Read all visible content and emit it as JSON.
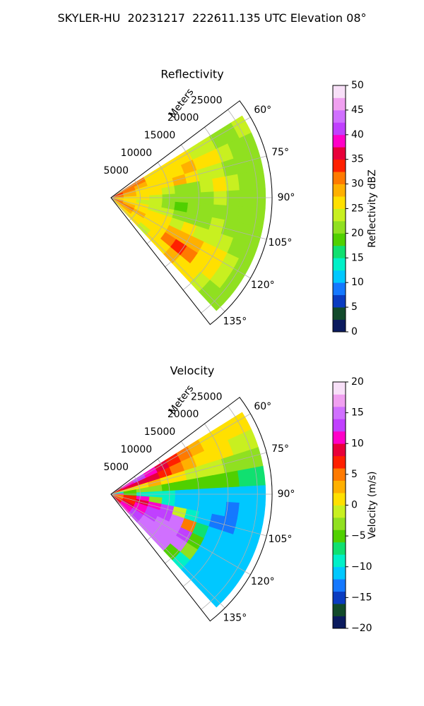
{
  "suptitle": "SKYLER-HU  20231217  222611.135 UTC Elevation 08°",
  "chart_data": [
    {
      "type": "heatmap",
      "projection": "polar sector",
      "title": "Reflectivity",
      "radial_label": "Meters",
      "radial_ticks": [
        5000,
        10000,
        15000,
        20000,
        25000
      ],
      "radial_tick_labels": [
        "5000",
        "10000",
        "15000",
        "20000",
        "25000"
      ],
      "r_range": [
        0,
        27500
      ],
      "azimuth_ticks": [
        60,
        75,
        90,
        105,
        120,
        135
      ],
      "azimuth_tick_labels": [
        "60°",
        "75°",
        "90°",
        "105°",
        "120°",
        "135°"
      ],
      "azimuth_range": [
        53,
        142
      ],
      "data_extent_deg": [
        58,
        137
      ],
      "grid": true,
      "colorbar": {
        "label": "Reflectivity dBZ",
        "range": [
          0,
          50
        ],
        "ticks": [
          0,
          5,
          10,
          15,
          20,
          25,
          30,
          35,
          40,
          45,
          50
        ],
        "tick_labels": [
          "0",
          "5",
          "10",
          "15",
          "20",
          "25",
          "30",
          "35",
          "40",
          "45",
          "50"
        ],
        "colors": [
          "#0b1b5e",
          "#124a2b",
          "#0a3bc0",
          "#1478ff",
          "#00c8ff",
          "#00f0c8",
          "#10e070",
          "#50d000",
          "#90e020",
          "#c8f020",
          "#ffe000",
          "#ffb000",
          "#ff7a00",
          "#ff2000",
          "#e8003a",
          "#ff00c8",
          "#c040ff",
          "#d070ff",
          "#f0a0f0",
          "#f8e0f8"
        ]
      },
      "values": [
        [
          29,
          31,
          30,
          27,
          25,
          25,
          26,
          24,
          23,
          22,
          22,
          23
        ],
        [
          33,
          30,
          29,
          27,
          26,
          27,
          28,
          27,
          25,
          23,
          22,
          22
        ],
        [
          30,
          28,
          27,
          26,
          26,
          28,
          26,
          24,
          24,
          22,
          22,
          21
        ],
        [
          31,
          28,
          27,
          26,
          24,
          22,
          21,
          23,
          25,
          23,
          22,
          21
        ],
        [
          28,
          27,
          25,
          24,
          22,
          21,
          21,
          22,
          23,
          22,
          21,
          20
        ],
        [
          27,
          26,
          24,
          23,
          21,
          19,
          20,
          21,
          22,
          22,
          21,
          20
        ],
        [
          28,
          27,
          26,
          24,
          23,
          21,
          21,
          22,
          23,
          22,
          21,
          20
        ],
        [
          30,
          29,
          27,
          26,
          25,
          24,
          25,
          24,
          24,
          23,
          22,
          21
        ],
        [
          31,
          30,
          29,
          27,
          26,
          28,
          29,
          28,
          26,
          25,
          23,
          22
        ],
        [
          29,
          28,
          27,
          26,
          27,
          30,
          34,
          31,
          27,
          25,
          23,
          22
        ],
        [
          27,
          26,
          25,
          24,
          25,
          27,
          28,
          27,
          25,
          23,
          22,
          21
        ]
      ]
    },
    {
      "type": "heatmap",
      "projection": "polar sector",
      "title": "Velocity",
      "radial_label": "Meters",
      "radial_ticks": [
        5000,
        10000,
        15000,
        20000,
        25000
      ],
      "radial_tick_labels": [
        "5000",
        "10000",
        "15000",
        "20000",
        "25000"
      ],
      "r_range": [
        0,
        27500
      ],
      "azimuth_ticks": [
        60,
        75,
        90,
        105,
        120,
        135
      ],
      "azimuth_tick_labels": [
        "60°",
        "75°",
        "90°",
        "105°",
        "120°",
        "135°"
      ],
      "azimuth_range": [
        53,
        142
      ],
      "data_extent_deg": [
        58,
        137
      ],
      "grid": true,
      "colorbar": {
        "label": "Velocity (m/s)",
        "range": [
          -20,
          20
        ],
        "ticks": [
          -20,
          -15,
          -10,
          -5,
          0,
          5,
          10,
          15,
          20
        ],
        "tick_labels": [
          "−20",
          "−15",
          "−10",
          "−5",
          "0",
          "5",
          "10",
          "15",
          "20"
        ],
        "colors": [
          "#0b1b5e",
          "#124a2b",
          "#0a3bc0",
          "#1478ff",
          "#00c8ff",
          "#00f0c8",
          "#10e070",
          "#50d000",
          "#90e020",
          "#c8f020",
          "#ffe000",
          "#ffb000",
          "#ff7a00",
          "#ff2000",
          "#e8003a",
          "#ff00c8",
          "#c040ff",
          "#d070ff",
          "#f0a0f0",
          "#f8e0f8"
        ]
      },
      "values": [
        [
          9,
          11,
          12,
          10,
          8,
          6,
          4,
          2,
          1,
          0,
          1,
          0
        ],
        [
          7,
          8,
          9,
          8,
          6,
          4,
          2,
          1,
          0,
          0,
          -1,
          -1
        ],
        [
          -1,
          0,
          1,
          2,
          1,
          0,
          -1,
          -2,
          -2,
          -3,
          -3,
          -4
        ],
        [
          -9,
          -5,
          -3,
          -4,
          -5,
          -6,
          -6,
          -5,
          -5,
          -6,
          -7,
          -8
        ],
        [
          10,
          -6,
          -9,
          -10,
          -10,
          -11,
          -12,
          -11,
          -11,
          -12,
          -12,
          -12
        ],
        [
          5,
          7,
          10,
          -3,
          -9,
          -11,
          -12,
          -12,
          -12,
          -13,
          -12,
          -12
        ],
        [
          4,
          6,
          9,
          11,
          12,
          -2,
          -10,
          -12,
          -13,
          -13,
          -12,
          -12
        ],
        [
          5,
          7,
          10,
          12,
          13,
          14,
          4,
          -8,
          -11,
          -12,
          -12,
          -12
        ],
        [
          6,
          9,
          11,
          12,
          14,
          15,
          13,
          -6,
          -11,
          -12,
          -12,
          -12
        ],
        [
          7,
          10,
          12,
          14,
          15,
          15,
          14,
          -4,
          -11,
          -12,
          -12,
          -12
        ],
        [
          8,
          11,
          13,
          14,
          15,
          15,
          -5,
          -10,
          -11,
          -12,
          -12,
          -12
        ]
      ]
    }
  ]
}
